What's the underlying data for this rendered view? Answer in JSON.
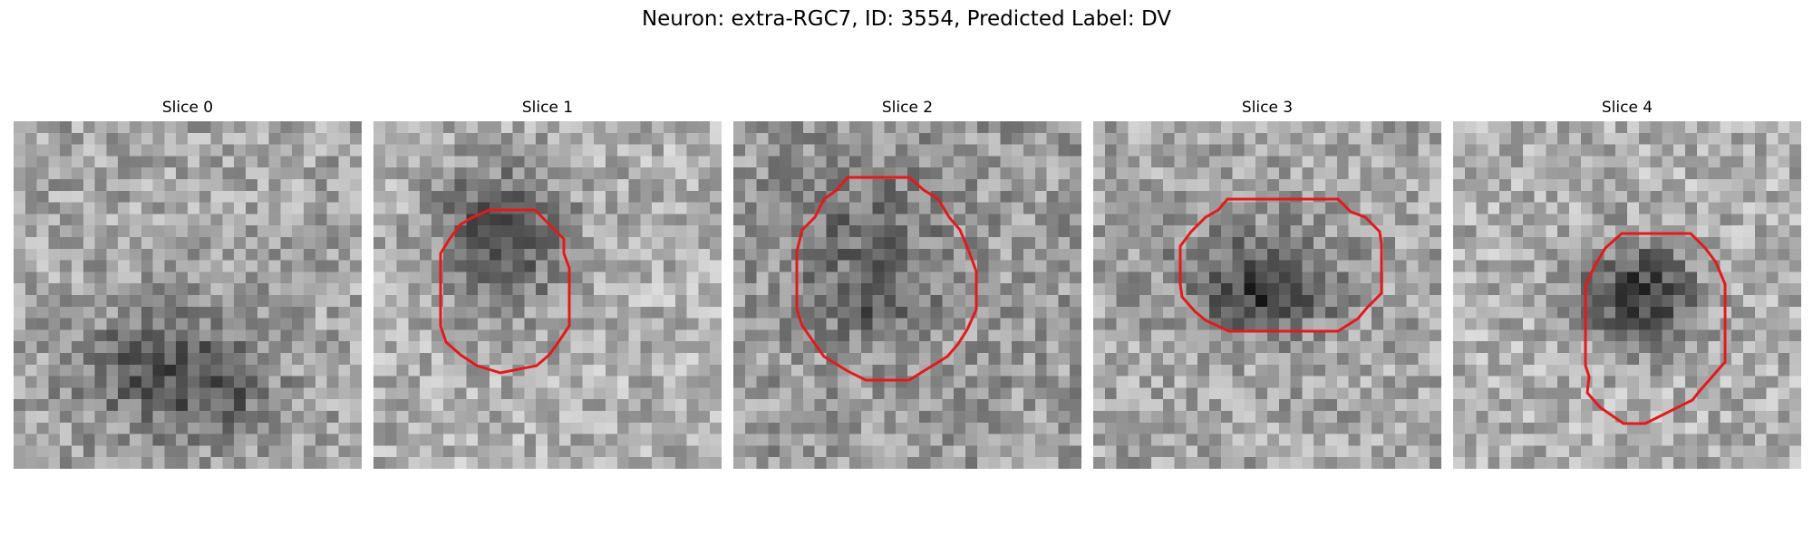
{
  "figure": {
    "title": "Neuron: extra-RGC7, ID: 3554, Predicted Label: DV"
  },
  "slices": [
    {
      "title": "Slice 0",
      "has_contour": false
    },
    {
      "title": "Slice 1",
      "has_contour": true
    },
    {
      "title": "Slice 2",
      "has_contour": true
    },
    {
      "title": "Slice 3",
      "has_contour": true
    },
    {
      "title": "Slice 4",
      "has_contour": true
    }
  ],
  "colors": {
    "contour": "#e31a1c",
    "background": "#ffffff"
  }
}
